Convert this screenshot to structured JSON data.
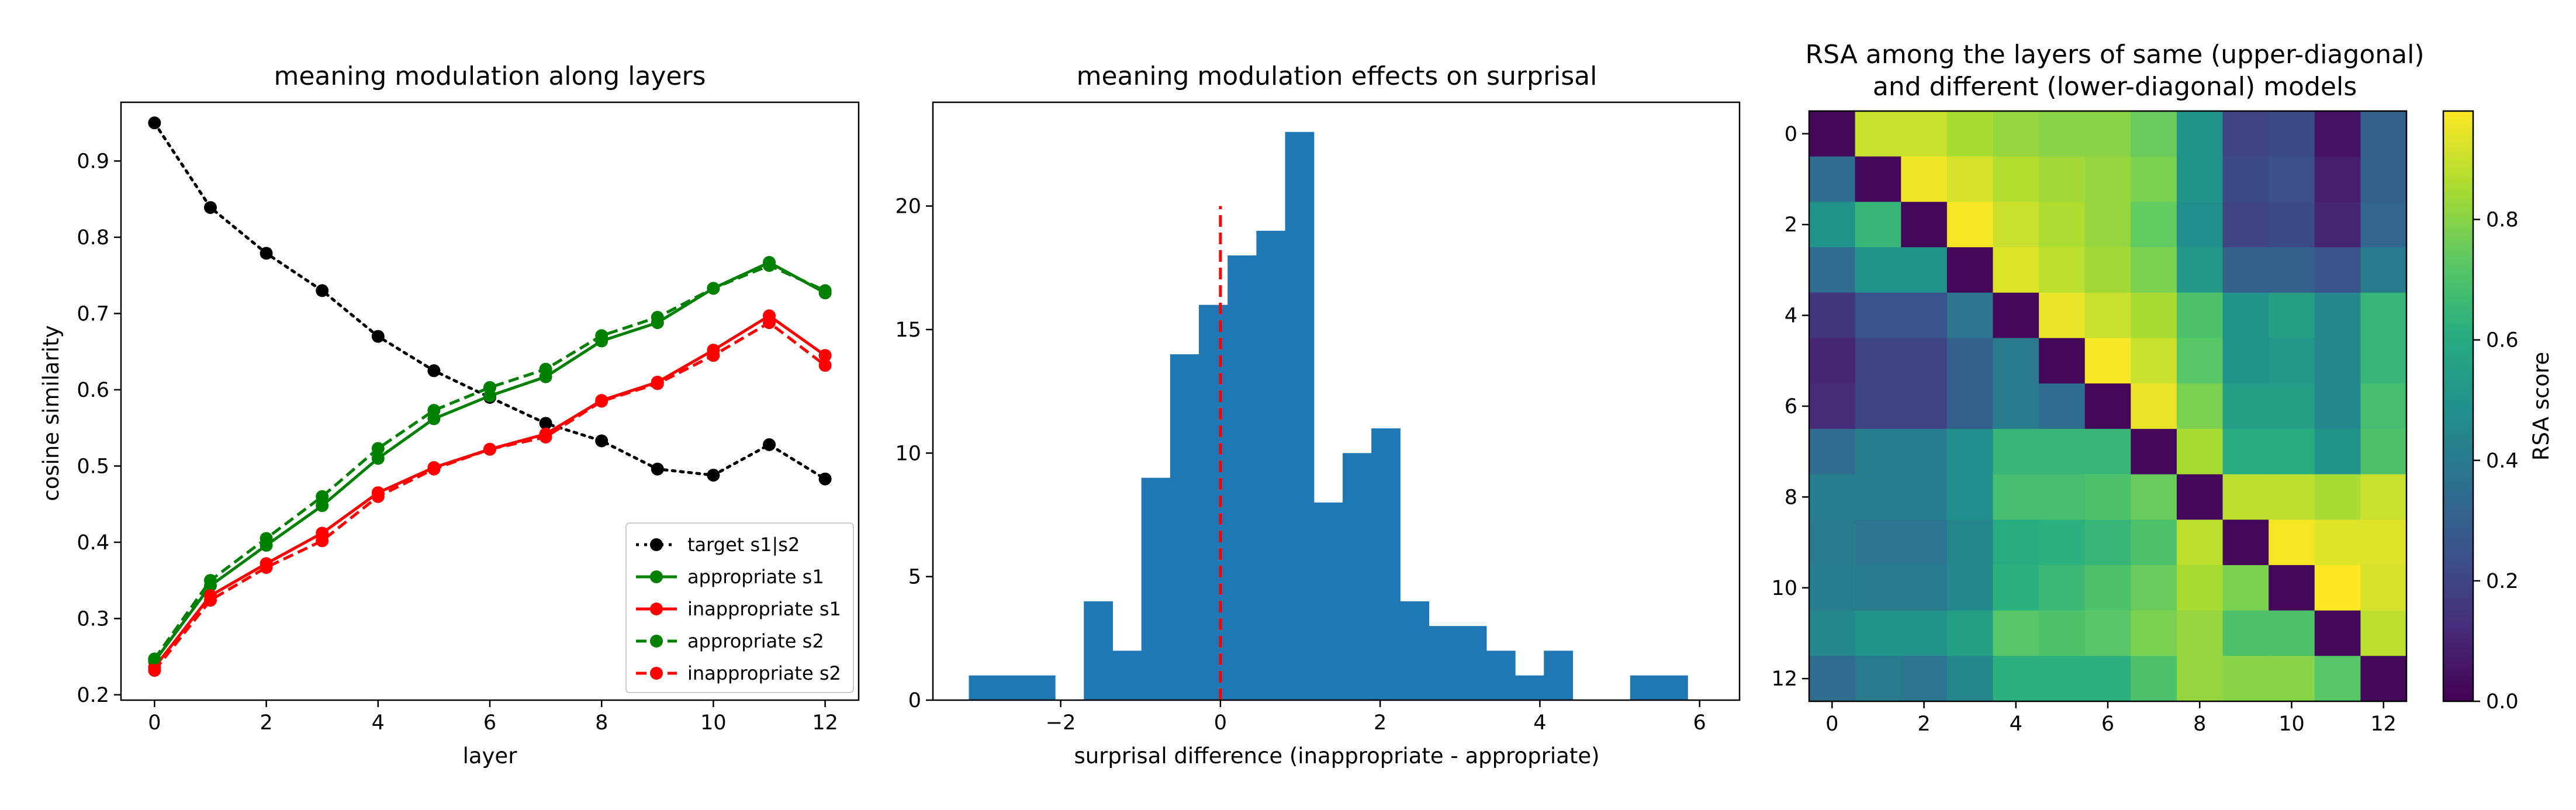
{
  "chart_data": [
    {
      "type": "line",
      "title": "meaning modulation along layers",
      "xlabel": "layer",
      "ylabel": "cosine similarity",
      "xlim": [
        -0.6,
        12.6
      ],
      "ylim": [
        0.193,
        0.977
      ],
      "xticks": [
        0,
        2,
        4,
        6,
        8,
        10,
        12
      ],
      "yticks": [
        0.2,
        0.3,
        0.4,
        0.5,
        0.6,
        0.7,
        0.8,
        0.9
      ],
      "x": [
        0,
        1,
        2,
        3,
        4,
        5,
        6,
        7,
        8,
        9,
        10,
        11,
        12
      ],
      "legend_position": "lower-right",
      "series": [
        {
          "name": "target s1|s2",
          "color": "#000000",
          "dash": "dotted",
          "values": [
            0.95,
            0.839,
            0.779,
            0.73,
            0.67,
            0.625,
            0.59,
            0.556,
            0.533,
            0.496,
            0.488,
            0.528,
            0.483
          ]
        },
        {
          "name": "appropriate s1",
          "color": "#008000",
          "dash": "solid",
          "values": [
            0.244,
            0.343,
            0.396,
            0.448,
            0.51,
            0.562,
            0.592,
            0.617,
            0.664,
            0.688,
            0.733,
            0.767,
            0.727
          ]
        },
        {
          "name": "inappropriate s1",
          "color": "#ff0000",
          "dash": "solid",
          "values": [
            0.236,
            0.33,
            0.372,
            0.412,
            0.465,
            0.498,
            0.522,
            0.542,
            0.586,
            0.61,
            0.652,
            0.697,
            0.645
          ]
        },
        {
          "name": "appropriate s2",
          "color": "#008000",
          "dash": "dashed",
          "values": [
            0.247,
            0.35,
            0.405,
            0.46,
            0.523,
            0.573,
            0.603,
            0.627,
            0.671,
            0.695,
            0.733,
            0.763,
            0.73
          ]
        },
        {
          "name": "inappropriate s2",
          "color": "#ff0000",
          "dash": "dashed",
          "values": [
            0.232,
            0.324,
            0.367,
            0.402,
            0.46,
            0.496,
            0.522,
            0.538,
            0.585,
            0.608,
            0.645,
            0.688,
            0.632
          ]
        }
      ]
    },
    {
      "type": "bar",
      "subtype": "histogram",
      "title": "meaning modulation effects on surprisal",
      "xlabel": "surprisal difference (inappropriate - appropriate)",
      "ylabel": "",
      "xlim": [
        -3.6,
        6.5
      ],
      "ylim": [
        0,
        24.2
      ],
      "xticks": [
        -2,
        0,
        2,
        4,
        6
      ],
      "xtick_labels": [
        "−2",
        "0",
        "2",
        "4",
        "6"
      ],
      "yticks": [
        0,
        5,
        10,
        15,
        20
      ],
      "bar_color": "#1f77b4",
      "bin_start": -3.15,
      "bin_width": 0.36,
      "counts": [
        1,
        1,
        1,
        0,
        4,
        2,
        9,
        14,
        16,
        18,
        19,
        23,
        8,
        10,
        11,
        4,
        3,
        3,
        2,
        1,
        2,
        0,
        0,
        1,
        1
      ],
      "reference_line": {
        "x": 0,
        "y_from": 0,
        "y_to": 20,
        "color": "#ff0000",
        "dash": "dashed"
      }
    },
    {
      "type": "heatmap",
      "title_lines": [
        "RSA among the layers of same (upper-diagonal)",
        "and different (lower-diagonal) models"
      ],
      "colormap": "viridis",
      "vmin": 0,
      "vmax": 0.98,
      "colorbar_label": "RSA score",
      "colorbar_ticks": [
        0.0,
        0.2,
        0.4,
        0.6,
        0.8
      ],
      "xticks": [
        0,
        2,
        4,
        6,
        8,
        10,
        12
      ],
      "yticks": [
        0,
        2,
        4,
        6,
        8,
        10,
        12
      ],
      "matrix": [
        [
          0.02,
          0.9,
          0.9,
          0.85,
          0.82,
          0.8,
          0.8,
          0.75,
          0.5,
          0.2,
          0.22,
          0.05,
          0.3
        ],
        [
          0.35,
          0.02,
          0.96,
          0.92,
          0.87,
          0.84,
          0.82,
          0.78,
          0.5,
          0.22,
          0.24,
          0.08,
          0.3
        ],
        [
          0.5,
          0.65,
          0.02,
          0.97,
          0.9,
          0.86,
          0.82,
          0.74,
          0.48,
          0.2,
          0.22,
          0.1,
          0.32
        ],
        [
          0.35,
          0.5,
          0.5,
          0.02,
          0.93,
          0.88,
          0.84,
          0.78,
          0.52,
          0.3,
          0.3,
          0.25,
          0.4
        ],
        [
          0.15,
          0.25,
          0.25,
          0.38,
          0.02,
          0.95,
          0.9,
          0.85,
          0.7,
          0.5,
          0.55,
          0.45,
          0.65
        ],
        [
          0.1,
          0.2,
          0.2,
          0.3,
          0.4,
          0.02,
          0.97,
          0.9,
          0.72,
          0.5,
          0.52,
          0.45,
          0.65
        ],
        [
          0.12,
          0.2,
          0.2,
          0.3,
          0.4,
          0.35,
          0.02,
          0.95,
          0.78,
          0.55,
          0.55,
          0.45,
          0.68
        ],
        [
          0.35,
          0.42,
          0.42,
          0.48,
          0.65,
          0.65,
          0.65,
          0.02,
          0.85,
          0.6,
          0.6,
          0.5,
          0.7
        ],
        [
          0.42,
          0.42,
          0.42,
          0.48,
          0.68,
          0.68,
          0.7,
          0.75,
          0.02,
          0.88,
          0.88,
          0.85,
          0.9
        ],
        [
          0.4,
          0.38,
          0.38,
          0.45,
          0.6,
          0.62,
          0.65,
          0.7,
          0.88,
          0.02,
          0.97,
          0.93,
          0.93
        ],
        [
          0.42,
          0.4,
          0.4,
          0.45,
          0.62,
          0.66,
          0.7,
          0.75,
          0.85,
          0.78,
          0.02,
          0.98,
          0.92
        ],
        [
          0.45,
          0.5,
          0.5,
          0.55,
          0.72,
          0.7,
          0.72,
          0.78,
          0.82,
          0.7,
          0.7,
          0.02,
          0.88
        ],
        [
          0.35,
          0.4,
          0.38,
          0.45,
          0.62,
          0.62,
          0.62,
          0.7,
          0.82,
          0.8,
          0.8,
          0.72,
          0.02
        ]
      ]
    }
  ]
}
